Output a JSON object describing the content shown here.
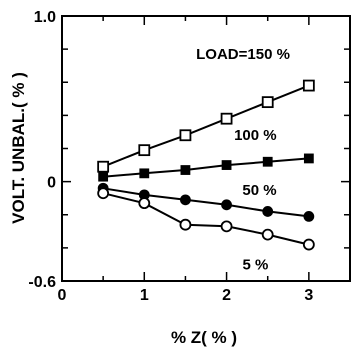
{
  "chart_data": {
    "type": "line",
    "xlabel": "% Z( % )",
    "ylabel": "VOLT. UNBAL.( % )",
    "xlim": [
      0,
      3.5
    ],
    "ylim": [
      -0.6,
      1.0
    ],
    "x_ticks": [
      "0",
      "1",
      "2",
      "3"
    ],
    "y_ticks": [
      "1.0",
      "0",
      "-0.6"
    ],
    "x_tick_values": [
      0,
      1,
      2,
      3
    ],
    "y_tick_values": [
      1.0,
      0,
      -0.6
    ],
    "grid": false,
    "series": [
      {
        "name": "LOAD=150 %",
        "marker": "open-square",
        "x": [
          0.5,
          1.0,
          1.5,
          2.0,
          2.5,
          3.0
        ],
        "values": [
          0.09,
          0.19,
          0.28,
          0.38,
          0.48,
          0.58
        ]
      },
      {
        "name": "100 %",
        "marker": "filled-square",
        "x": [
          0.5,
          1.0,
          1.5,
          2.0,
          2.5,
          3.0
        ],
        "values": [
          0.03,
          0.05,
          0.07,
          0.1,
          0.12,
          0.14
        ]
      },
      {
        "name": "50 %",
        "marker": "filled-circle",
        "x": [
          0.5,
          1.0,
          1.5,
          2.0,
          2.5,
          3.0
        ],
        "values": [
          -0.04,
          -0.08,
          -0.11,
          -0.14,
          -0.18,
          -0.21
        ]
      },
      {
        "name": "5 %",
        "marker": "open-circle",
        "x": [
          0.5,
          1.0,
          1.5,
          2.0,
          2.5,
          3.0
        ],
        "values": [
          -0.07,
          -0.13,
          -0.26,
          -0.27,
          -0.32,
          -0.38
        ]
      }
    ]
  }
}
